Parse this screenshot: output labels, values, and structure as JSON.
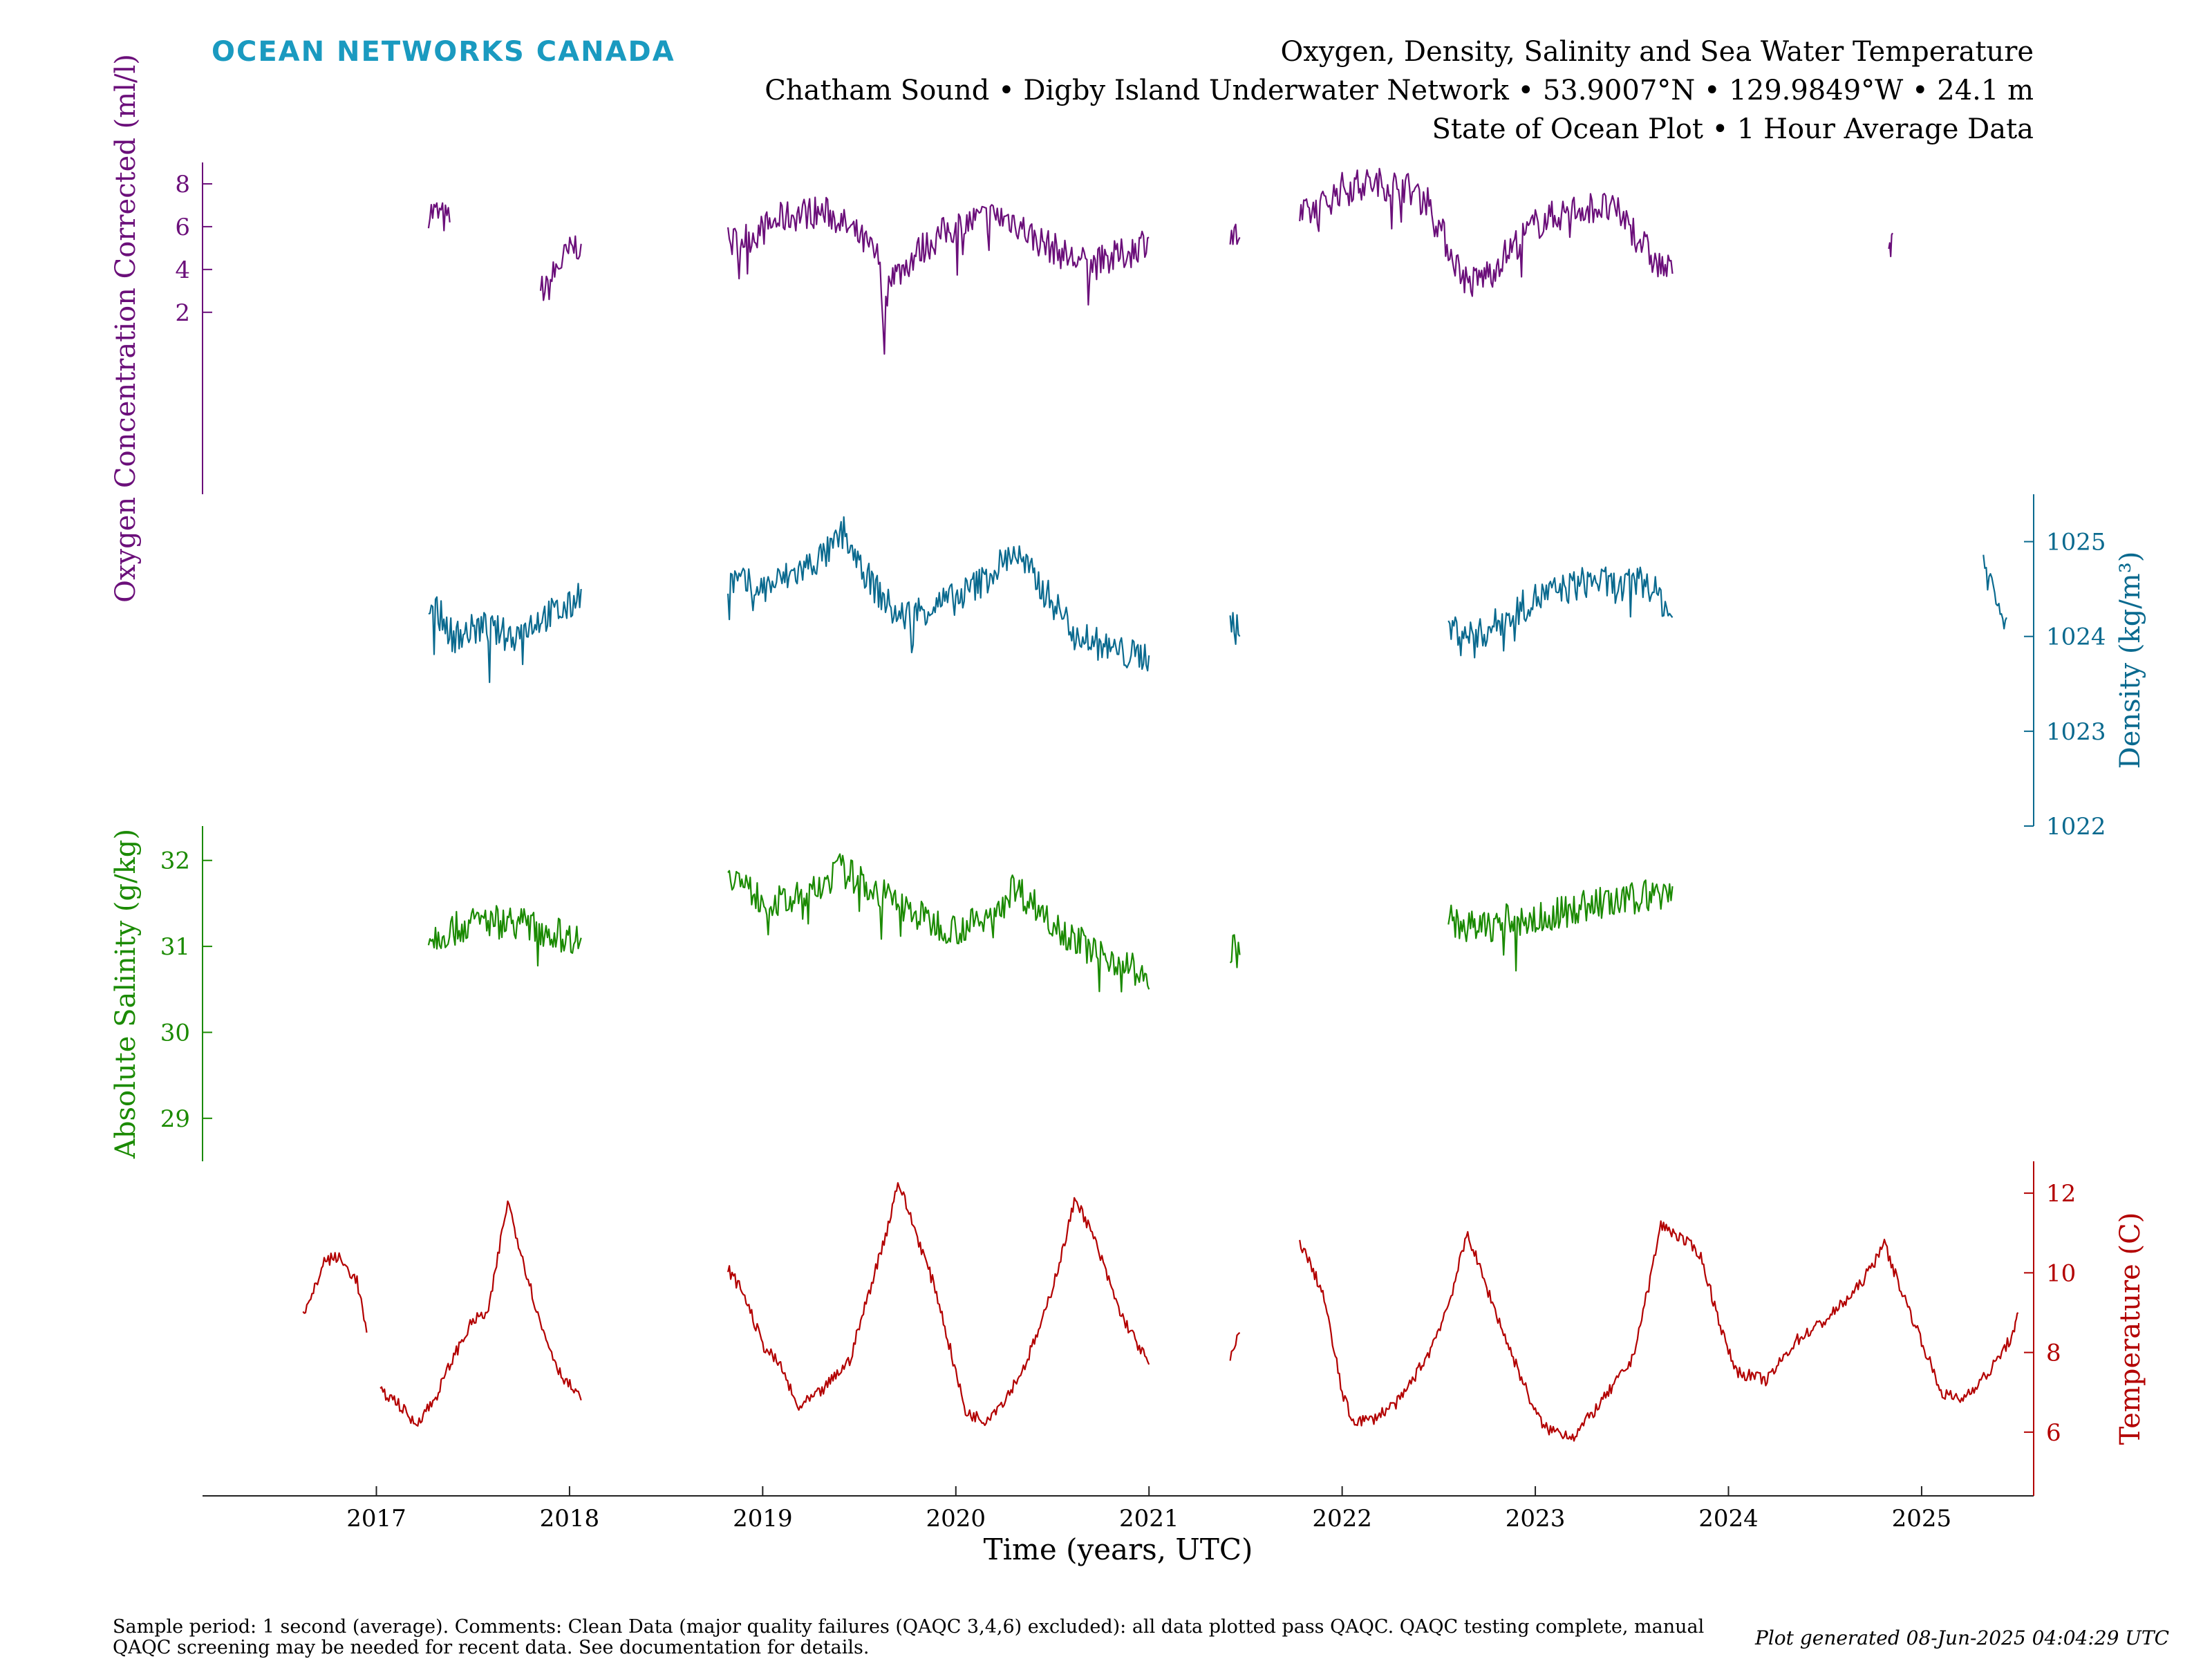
{
  "header": {
    "logo": "OCEAN NETWORKS CANADA",
    "title": "Oxygen, Density, Salinity and Sea Water Temperature",
    "subtitle": "Chatham Sound • Digby Island Underwater Network • 53.9007°N • 129.9849°W • 24.1 m",
    "subtitle2": "State of Ocean Plot • 1 Hour Average Data"
  },
  "footer": {
    "line1": "Sample period: 1 second (average). Comments: Clean Data (major quality failures (QAQC 3,4,6) excluded): all data plotted pass QAQC. QAQC testing complete, manual",
    "line2": "QAQC screening may be needed for recent data. See documentation for details.",
    "generated": "Plot generated 08-Jun-2025 04:04:29 UTC"
  },
  "chart_data": {
    "type": "line",
    "xlabel": "Time (years, UTC)",
    "xlim": [
      2016.1,
      2025.58
    ],
    "xticks": [
      "2017",
      "2018",
      "2019",
      "2020",
      "2021",
      "2022",
      "2023",
      "2024",
      "2025"
    ],
    "panels": [
      {
        "name": "oxygen",
        "ylabel": "Oxygen Concentration Corrected (ml/l)",
        "axis": "left",
        "color": "#6b0f7a",
        "ylim": [
          -6.5,
          9
        ],
        "yticks": [
          "2",
          "4",
          "6",
          "8"
        ],
        "segments": [
          [
            [
              2017.27,
              6.7
            ],
            [
              2017.32,
              6.6
            ],
            [
              2017.38,
              6.2
            ]
          ],
          [
            [
              2017.85,
              3.2
            ],
            [
              2017.88,
              3.0
            ],
            [
              2017.93,
              4.0
            ],
            [
              2017.98,
              4.6
            ],
            [
              2018.03,
              5.1
            ],
            [
              2018.06,
              5.2
            ]
          ],
          [
            [
              2018.82,
              5.2
            ],
            [
              2018.95,
              5.6
            ],
            [
              2019.1,
              6.4
            ],
            [
              2019.25,
              6.7
            ],
            [
              2019.35,
              6.6
            ],
            [
              2019.5,
              5.5
            ],
            [
              2019.6,
              4.5
            ],
            [
              2019.63,
              1.5
            ],
            [
              2019.66,
              4.0
            ],
            [
              2019.7,
              3.8
            ],
            [
              2019.8,
              4.8
            ],
            [
              2019.95,
              5.8
            ],
            [
              2020.1,
              6.3
            ],
            [
              2020.2,
              6.5
            ],
            [
              2020.3,
              6.3
            ],
            [
              2020.4,
              5.5
            ],
            [
              2020.5,
              5.0
            ],
            [
              2020.6,
              4.5
            ],
            [
              2020.7,
              4.2
            ],
            [
              2020.8,
              4.5
            ],
            [
              2020.9,
              4.8
            ],
            [
              2021.0,
              5.5
            ]
          ],
          [
            [
              2021.42,
              5.6
            ],
            [
              2021.47,
              5.5
            ]
          ],
          [
            [
              2021.78,
              6.4
            ],
            [
              2021.9,
              7.0
            ],
            [
              2022.0,
              7.8
            ],
            [
              2022.1,
              8.0
            ],
            [
              2022.2,
              8.0
            ],
            [
              2022.32,
              7.9
            ],
            [
              2022.45,
              7.2
            ],
            [
              2022.55,
              5.0
            ],
            [
              2022.62,
              3.8
            ],
            [
              2022.66,
              3.3
            ],
            [
              2022.75,
              3.8
            ],
            [
              2022.9,
              5.2
            ],
            [
              2023.0,
              6.1
            ],
            [
              2023.1,
              6.5
            ],
            [
              2023.25,
              6.9
            ],
            [
              2023.35,
              6.9
            ],
            [
              2023.45,
              6.5
            ],
            [
              2023.55,
              5.3
            ],
            [
              2023.62,
              4.3
            ],
            [
              2023.68,
              4.0
            ],
            [
              2023.71,
              3.8
            ]
          ],
          [
            [
              2024.83,
              5.4
            ],
            [
              2024.85,
              5.7
            ]
          ]
        ]
      },
      {
        "name": "density",
        "ylabel": "Density (kg/m³)",
        "axis": "right",
        "color": "#0a6a8f",
        "ylim": [
          1022,
          1025.5
        ],
        "yticks": [
          "1022",
          "1023",
          "1024",
          "1025"
        ],
        "segments": [
          [
            [
              2017.27,
              1024.4
            ],
            [
              2017.4,
              1024.0
            ],
            [
              2017.55,
              1024.1
            ],
            [
              2017.7,
              1024.0
            ],
            [
              2017.85,
              1024.2
            ],
            [
              2018.0,
              1024.3
            ],
            [
              2018.06,
              1024.5
            ]
          ],
          [
            [
              2018.82,
              1024.6
            ],
            [
              2019.0,
              1024.5
            ],
            [
              2019.2,
              1024.7
            ],
            [
              2019.35,
              1024.9
            ],
            [
              2019.42,
              1025.1
            ],
            [
              2019.55,
              1024.6
            ],
            [
              2019.7,
              1024.2
            ],
            [
              2019.85,
              1024.3
            ],
            [
              2020.0,
              1024.4
            ],
            [
              2020.15,
              1024.6
            ],
            [
              2020.3,
              1024.9
            ],
            [
              2020.45,
              1024.5
            ],
            [
              2020.6,
              1024.1
            ],
            [
              2020.75,
              1023.9
            ],
            [
              2020.9,
              1023.8
            ],
            [
              2021.0,
              1023.8
            ]
          ],
          [
            [
              2021.42,
              1024.2
            ],
            [
              2021.47,
              1024.0
            ]
          ],
          [
            [
              2022.55,
              1024.1
            ],
            [
              2022.7,
              1024.0
            ],
            [
              2022.85,
              1024.2
            ],
            [
              2023.0,
              1024.4
            ],
            [
              2023.15,
              1024.5
            ],
            [
              2023.3,
              1024.6
            ],
            [
              2023.45,
              1024.5
            ],
            [
              2023.55,
              1024.6
            ],
            [
              2023.65,
              1024.4
            ],
            [
              2023.71,
              1024.2
            ]
          ],
          [
            [
              2025.32,
              1024.8
            ],
            [
              2025.4,
              1024.3
            ],
            [
              2025.44,
              1024.2
            ]
          ]
        ]
      },
      {
        "name": "salinity",
        "ylabel": "Absolute Salinity (g/kg)",
        "axis": "left",
        "color": "#1a8a00",
        "ylim": [
          28.5,
          32.4
        ],
        "yticks": [
          "29",
          "30",
          "31",
          "32"
        ],
        "segments": [
          [
            [
              2017.27,
              31.1
            ],
            [
              2017.4,
              31.2
            ],
            [
              2017.55,
              31.3
            ],
            [
              2017.7,
              31.3
            ],
            [
              2017.85,
              31.2
            ],
            [
              2018.0,
              31.1
            ],
            [
              2018.06,
              31.1
            ]
          ],
          [
            [
              2018.82,
              31.9
            ],
            [
              2018.95,
              31.6
            ],
            [
              2019.1,
              31.5
            ],
            [
              2019.25,
              31.6
            ],
            [
              2019.4,
              31.9
            ],
            [
              2019.55,
              31.7
            ],
            [
              2019.7,
              31.5
            ],
            [
              2019.85,
              31.3
            ],
            [
              2020.0,
              31.2
            ],
            [
              2020.15,
              31.3
            ],
            [
              2020.3,
              31.7
            ],
            [
              2020.45,
              31.4
            ],
            [
              2020.6,
              31.1
            ],
            [
              2020.75,
              30.9
            ],
            [
              2020.9,
              30.8
            ],
            [
              2021.0,
              30.5
            ]
          ],
          [
            [
              2021.42,
              31.0
            ],
            [
              2021.47,
              30.9
            ]
          ],
          [
            [
              2022.55,
              31.3
            ],
            [
              2022.7,
              31.2
            ],
            [
              2022.85,
              31.3
            ],
            [
              2023.0,
              31.3
            ],
            [
              2023.15,
              31.4
            ],
            [
              2023.3,
              31.5
            ],
            [
              2023.45,
              31.5
            ],
            [
              2023.55,
              31.6
            ],
            [
              2023.65,
              31.6
            ],
            [
              2023.71,
              31.7
            ]
          ]
        ]
      },
      {
        "name": "temperature",
        "ylabel": "Temperature (C)",
        "axis": "right",
        "color": "#b30000",
        "ylim": [
          4.4,
          12.8
        ],
        "yticks": [
          "6",
          "8",
          "10",
          "12"
        ],
        "segments": [
          [
            [
              2016.62,
              9.0
            ],
            [
              2016.66,
              9.3
            ],
            [
              2016.73,
              10.3
            ],
            [
              2016.8,
              10.4
            ],
            [
              2016.9,
              9.8
            ],
            [
              2016.95,
              8.5
            ]
          ],
          [
            [
              2017.02,
              7.0
            ],
            [
              2017.1,
              6.8
            ],
            [
              2017.2,
              6.2
            ],
            [
              2017.3,
              6.8
            ],
            [
              2017.4,
              7.9
            ],
            [
              2017.5,
              8.8
            ],
            [
              2017.58,
              9.0
            ],
            [
              2017.65,
              11.0
            ],
            [
              2017.68,
              11.8
            ],
            [
              2017.75,
              10.5
            ],
            [
              2017.85,
              8.7
            ],
            [
              2017.95,
              7.5
            ],
            [
              2018.06,
              6.8
            ]
          ],
          [
            [
              2018.82,
              10.1
            ],
            [
              2018.9,
              9.5
            ],
            [
              2019.0,
              8.2
            ],
            [
              2019.1,
              7.6
            ],
            [
              2019.18,
              6.6
            ],
            [
              2019.3,
              7.0
            ],
            [
              2019.45,
              7.8
            ],
            [
              2019.55,
              9.5
            ],
            [
              2019.65,
              11.2
            ],
            [
              2019.7,
              12.3
            ],
            [
              2019.78,
              11.2
            ],
            [
              2019.9,
              9.5
            ],
            [
              2020.0,
              7.5
            ],
            [
              2020.05,
              6.5
            ],
            [
              2020.15,
              6.3
            ],
            [
              2020.25,
              6.8
            ],
            [
              2020.35,
              7.6
            ],
            [
              2020.45,
              8.8
            ],
            [
              2020.55,
              10.5
            ],
            [
              2020.62,
              11.9
            ],
            [
              2020.72,
              10.8
            ],
            [
              2020.85,
              9.0
            ],
            [
              2021.0,
              7.7
            ]
          ],
          [
            [
              2021.42,
              7.8
            ],
            [
              2021.47,
              8.5
            ]
          ],
          [
            [
              2021.78,
              10.8
            ],
            [
              2021.9,
              9.5
            ],
            [
              2022.0,
              7.0
            ],
            [
              2022.05,
              6.3
            ],
            [
              2022.15,
              6.3
            ],
            [
              2022.3,
              6.8
            ],
            [
              2022.45,
              8.0
            ],
            [
              2022.55,
              9.2
            ],
            [
              2022.65,
              11.0
            ],
            [
              2022.72,
              10.0
            ],
            [
              2022.85,
              8.3
            ],
            [
              2023.0,
              6.5
            ],
            [
              2023.05,
              6.1
            ],
            [
              2023.2,
              5.9
            ],
            [
              2023.35,
              6.8
            ],
            [
              2023.5,
              7.8
            ],
            [
              2023.58,
              9.5
            ],
            [
              2023.65,
              11.2
            ],
            [
              2023.72,
              11.0
            ],
            [
              2023.85,
              10.5
            ],
            [
              2024.0,
              8.0
            ],
            [
              2024.05,
              7.5
            ],
            [
              2024.2,
              7.3
            ],
            [
              2024.35,
              8.3
            ],
            [
              2024.5,
              8.8
            ],
            [
              2024.65,
              9.5
            ],
            [
              2024.75,
              10.2
            ],
            [
              2024.8,
              10.8
            ],
            [
              2024.9,
              9.5
            ],
            [
              2025.0,
              8.3
            ],
            [
              2025.1,
              7.0
            ],
            [
              2025.2,
              6.8
            ],
            [
              2025.35,
              7.5
            ],
            [
              2025.48,
              8.5
            ],
            [
              2025.5,
              9.0
            ]
          ]
        ]
      }
    ]
  }
}
